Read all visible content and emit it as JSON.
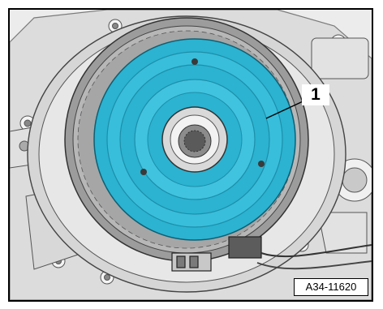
{
  "figure": {
    "callout_number": "1",
    "figure_id": "A34-11620"
  },
  "colors": {
    "highlight": "#2bb3d1",
    "highlight_dark": "#1d8ea9",
    "metal_light": "#e6e6e6",
    "metal_mid": "#bdbdbd",
    "metal_dark": "#6e6e6e",
    "outline": "#1a1a1a"
  },
  "icons": {
    "part": "piston-component",
    "housing": "transmission-housing"
  }
}
